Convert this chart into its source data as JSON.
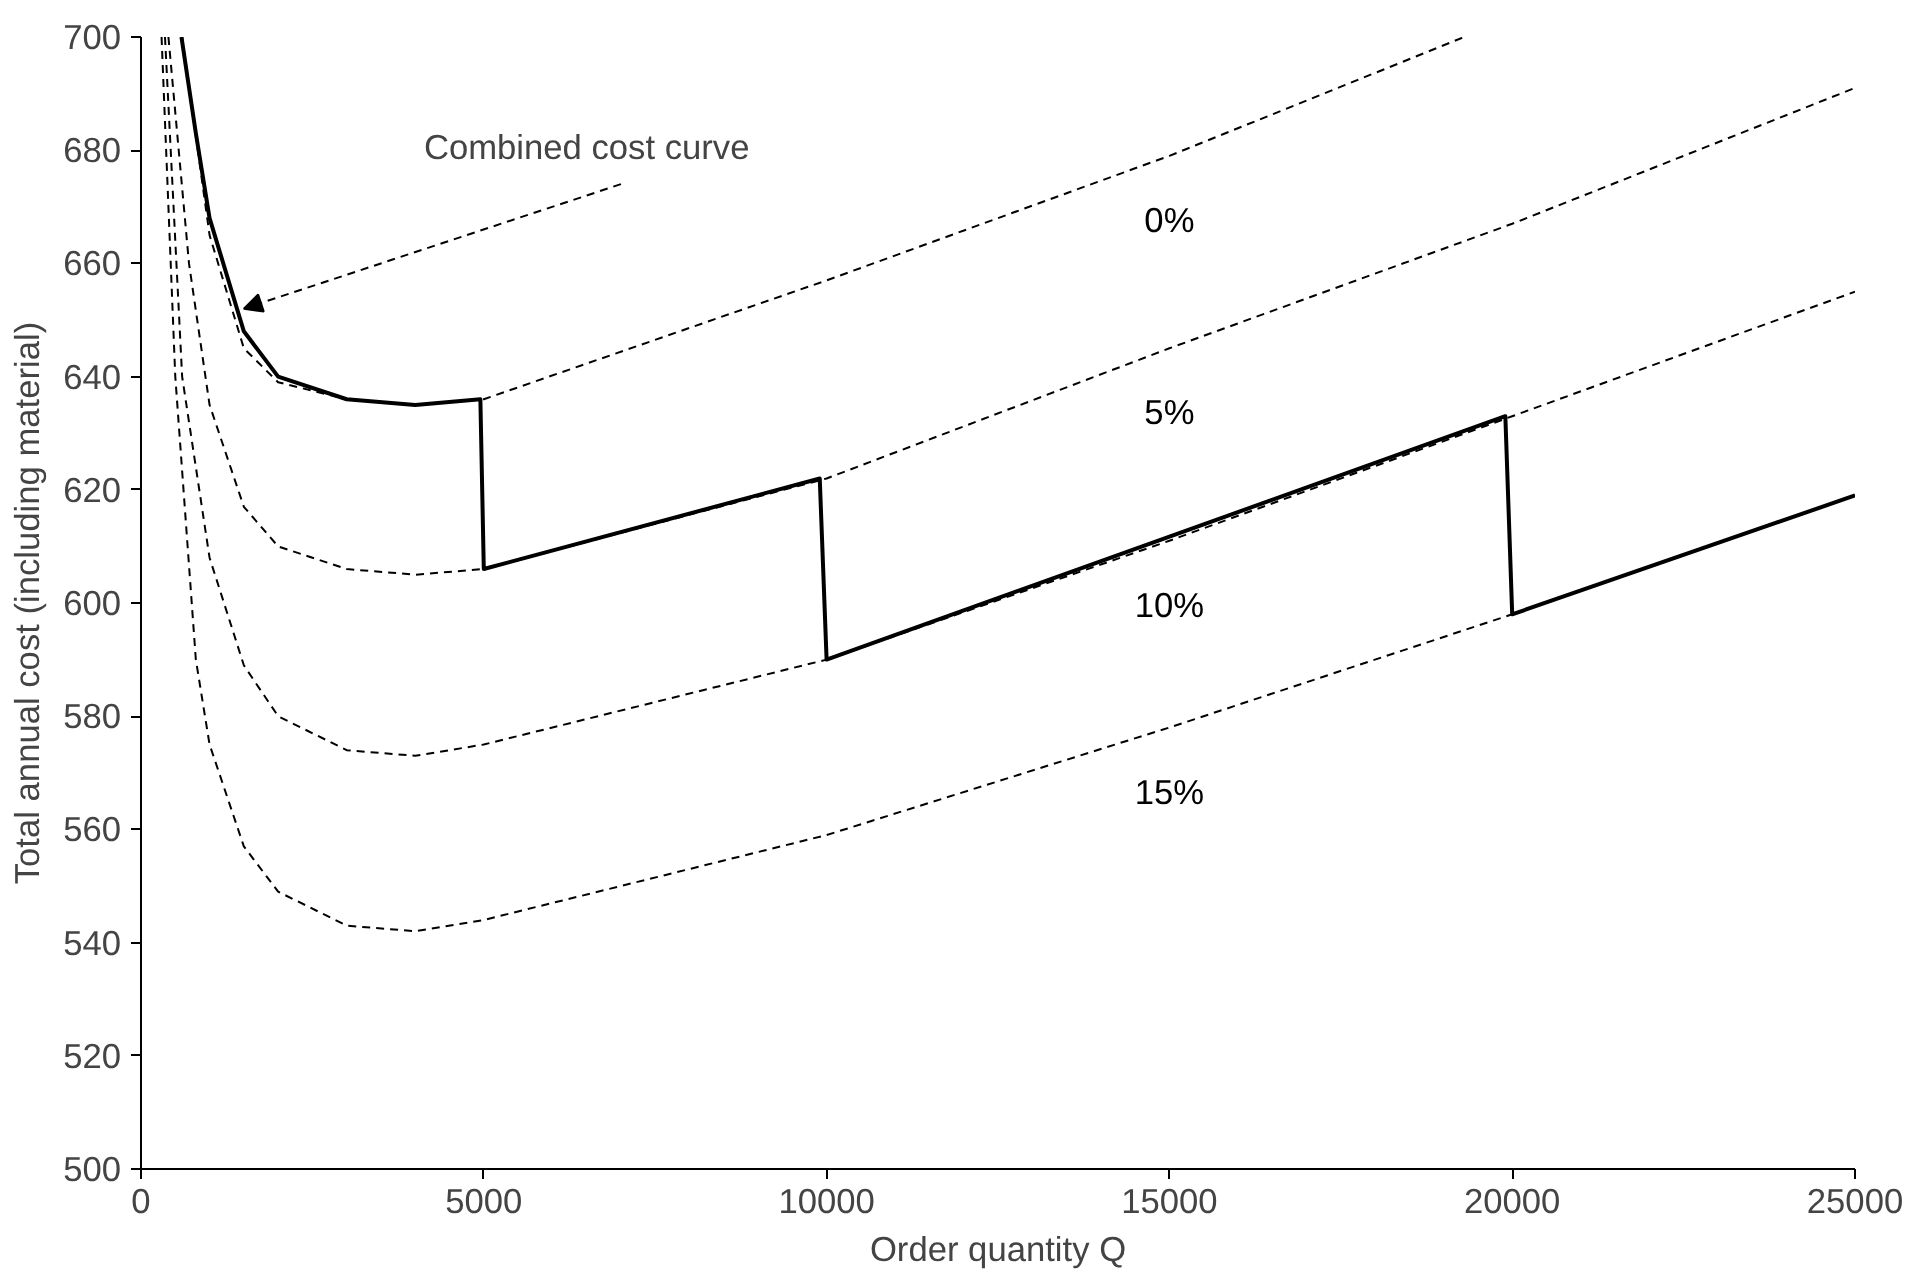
{
  "chart_data": {
    "type": "line",
    "xlabel": "Order quantity Q",
    "ylabel": "Total annual cost (including material)",
    "xlim": [
      0,
      25000
    ],
    "xticks": [
      0,
      5000,
      10000,
      15000,
      20000,
      25000
    ],
    "ylim": [
      500,
      700
    ],
    "yticks": [
      500,
      520,
      540,
      560,
      580,
      600,
      620,
      640,
      660,
      680,
      700
    ],
    "grid": false,
    "legend": false,
    "marker": "none",
    "series": [
      {
        "name": "0%",
        "color": "#000000",
        "line_style": "dashed",
        "x": [
          600,
          1000,
          1500,
          2000,
          3000,
          4000,
          5000,
          10000,
          15000,
          19300
        ],
        "values": [
          700,
          665,
          645,
          639,
          636,
          635,
          636,
          657,
          679,
          700
        ]
      },
      {
        "name": "5%",
        "color": "#000000",
        "line_style": "dashed",
        "x": [
          400,
          700,
          1000,
          1500,
          2000,
          3000,
          4000,
          5000,
          10000,
          15000,
          20000,
          25000
        ],
        "values": [
          700,
          660,
          635,
          617,
          610,
          606,
          605,
          606,
          622,
          645,
          667,
          691
        ]
      },
      {
        "name": "10%",
        "color": "#000000",
        "line_style": "dashed",
        "x": [
          350,
          600,
          1000,
          1500,
          2000,
          3000,
          4000,
          5000,
          10000,
          15000,
          20000,
          25000
        ],
        "values": [
          700,
          640,
          608,
          589,
          580,
          574,
          573,
          575,
          590,
          611,
          633,
          655
        ]
      },
      {
        "name": "15%",
        "color": "#000000",
        "line_style": "dashed",
        "x": [
          300,
          500,
          800,
          1000,
          1500,
          2000,
          3000,
          4000,
          5000,
          10000,
          15000,
          20000,
          25000
        ],
        "values": [
          700,
          640,
          590,
          575,
          557,
          549,
          543,
          542,
          544,
          559,
          578,
          598,
          619
        ]
      },
      {
        "color": "#000000",
        "line_style": "solid",
        "x": [
          590,
          800,
          1000,
          1500,
          2000,
          3000,
          4000,
          4950,
          5000,
          9900,
          10000,
          19900,
          20000,
          25000
        ],
        "values": [
          700,
          683,
          668,
          648,
          640,
          636,
          635,
          636,
          606,
          622,
          590,
          633,
          598,
          619
        ]
      }
    ],
    "annotations": [
      {
        "text": "Combined cost curve",
        "x": 1500,
        "y": 652
      }
    ]
  }
}
